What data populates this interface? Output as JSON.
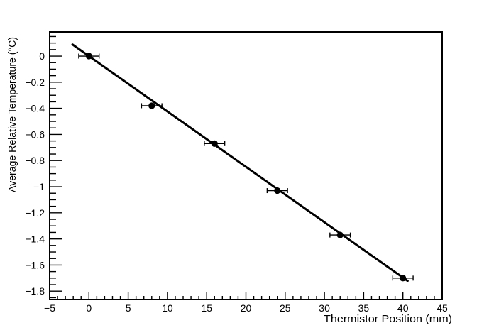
{
  "chart_data": {
    "type": "scatter",
    "title": "",
    "xlabel": "Thermistor Position (mm)",
    "ylabel": "Average Relative Temperature (°C)",
    "xlim": [
      -5,
      45
    ],
    "ylim": [
      -1.864,
      0.185
    ],
    "grid": false,
    "legend": null,
    "x_axis": {
      "major_ticks": [
        -5,
        0,
        5,
        10,
        15,
        20,
        25,
        30,
        35,
        40,
        45
      ],
      "major_tick_labels": [
        "−5",
        "0",
        "5",
        "10",
        "15",
        "20",
        "25",
        "30",
        "35",
        "40",
        "45"
      ],
      "minor_tick_step": 1
    },
    "y_axis": {
      "major_ticks": [
        0,
        -0.2,
        -0.4,
        -0.6,
        -0.8,
        -1,
        -1.2,
        -1.4,
        -1.6,
        -1.8
      ],
      "major_tick_labels": [
        "0",
        "−0.2",
        "−0.4",
        "−0.6",
        "−0.8",
        "−1",
        "−1.2",
        "−1.4",
        "−1.6",
        "−1.8"
      ],
      "minor_tick_step": 0.05
    },
    "points": {
      "x": [
        0,
        8,
        16,
        24,
        32,
        40
      ],
      "y": [
        0.0,
        -0.38,
        -0.67,
        -1.03,
        -1.37,
        -1.7
      ],
      "xerr": 1.3,
      "yerr": 0
    },
    "fit_line": {
      "type": "linear",
      "slope": -0.0424,
      "intercept": 0.0,
      "x_start": -2.1,
      "x_end": 40.6
    },
    "colors": {
      "marker": "#000000",
      "fit_line": "#000000",
      "axis": "#000000",
      "background": "#ffffff"
    }
  }
}
